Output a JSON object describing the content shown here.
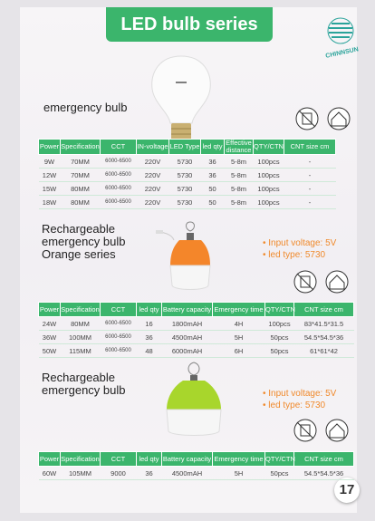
{
  "header": {
    "title": "LED bulb series",
    "logo": "CHINNSUN"
  },
  "sections": [
    {
      "title_lines": [
        "emergency bulb"
      ],
      "bullets": [],
      "table": {
        "headers": [
          "Power",
          "Specification",
          "CCT",
          "IN-voltage",
          "LED Type",
          "led qty",
          "Effective distance",
          "QTY/CTN",
          "CNT size cm"
        ],
        "rows": [
          [
            "9W",
            "70MM",
            "6000-6500",
            "220V",
            "5730",
            "36",
            "5-8m",
            "100pcs",
            "-"
          ],
          [
            "12W",
            "70MM",
            "6000-6500",
            "220V",
            "5730",
            "36",
            "5-8m",
            "100pcs",
            "-"
          ],
          [
            "15W",
            "80MM",
            "6000-6500",
            "220V",
            "5730",
            "50",
            "5-8m",
            "100pcs",
            "-"
          ],
          [
            "18W",
            "80MM",
            "6000-6500",
            "220V",
            "5730",
            "50",
            "5-8m",
            "100pcs",
            "-"
          ]
        ]
      }
    },
    {
      "title_lines": [
        "Rechargeable",
        "emergency bulb",
        "Orange series"
      ],
      "bullets": [
        "Input voltage: 5V",
        "led type: 5730"
      ],
      "table": {
        "headers": [
          "Power",
          "Specification",
          "CCT",
          "led qty",
          "Battery capacity",
          "Emergency time",
          "QTY/CTN",
          "CNT size cm"
        ],
        "rows": [
          [
            "24W",
            "80MM",
            "6000-6500",
            "16",
            "1800mAH",
            "4H",
            "100pcs",
            "83*41.5*31.5"
          ],
          [
            "36W",
            "100MM",
            "6000-6500",
            "36",
            "4500mAH",
            "5H",
            "50pcs",
            "54.5*54.5*36"
          ],
          [
            "50W",
            "115MM",
            "6000-6500",
            "48",
            "6000mAH",
            "6H",
            "50pcs",
            "61*61*42"
          ]
        ]
      }
    },
    {
      "title_lines": [
        "Rechargeable",
        "emergency bulb"
      ],
      "bullets": [
        "Input voltage: 5V",
        "led type: 5730"
      ],
      "table": {
        "headers": [
          "Power",
          "Specification",
          "CCT",
          "led qty",
          "Battery capacity",
          "Emergency time",
          "QTY/CTN",
          "CNT size cm"
        ],
        "rows": [
          [
            "60W",
            "105MM",
            "9000",
            "36",
            "4500mAH",
            "5H",
            "50pcs",
            "54.5*54.5*36"
          ]
        ]
      }
    }
  ],
  "footer": {
    "page_number": "17"
  }
}
